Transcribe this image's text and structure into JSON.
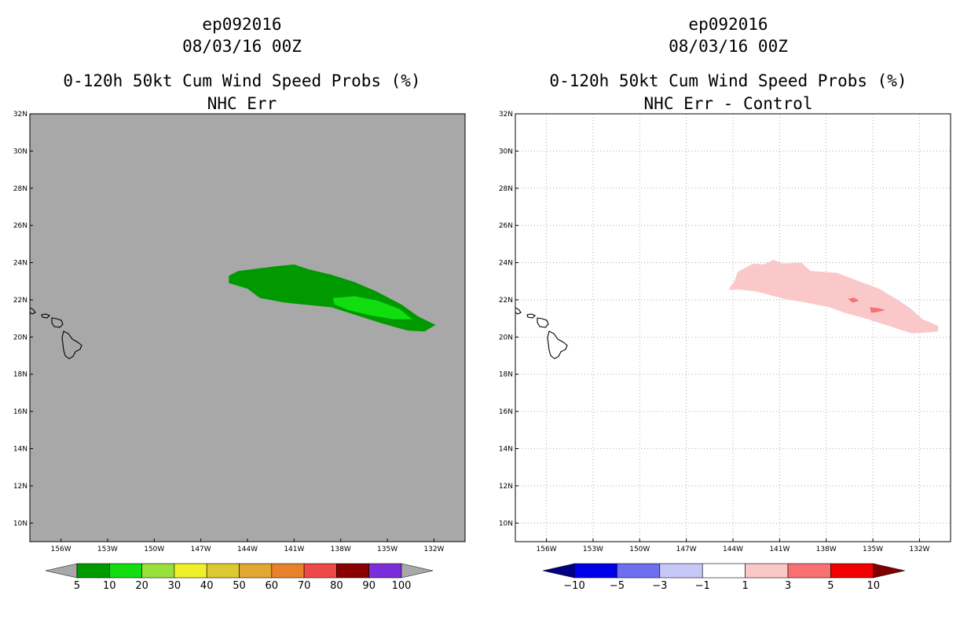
{
  "chart_data": [
    {
      "type": "heatmap",
      "storm": "ep092016",
      "date": "08/03/16 00Z",
      "title": "0-120h 50kt Cum Wind Speed Probs (%)",
      "subtitle": "NHC Err",
      "background_color": "#a8a8a8",
      "xaxis": {
        "range_lon": [
          -158,
          -130
        ],
        "tick_labels": [
          "156W",
          "153W",
          "150W",
          "147W",
          "144W",
          "141W",
          "138W",
          "135W",
          "132W"
        ],
        "tick_values": [
          -156,
          -153,
          -150,
          -147,
          -144,
          -141,
          -138,
          -135,
          -132
        ]
      },
      "yaxis": {
        "range_lat": [
          9,
          32
        ],
        "tick_labels": [
          "10N",
          "12N",
          "14N",
          "16N",
          "18N",
          "20N",
          "22N",
          "24N",
          "26N",
          "28N",
          "30N",
          "32N"
        ],
        "tick_values": [
          10,
          12,
          14,
          16,
          18,
          20,
          22,
          24,
          26,
          28,
          30,
          32
        ]
      },
      "grid": false,
      "colorbar": {
        "labels": [
          "5",
          "10",
          "20",
          "30",
          "40",
          "50",
          "60",
          "70",
          "80",
          "90",
          "100"
        ],
        "colors": [
          "#009900",
          "#11dd11",
          "#99e03c",
          "#f0f02a",
          "#dcc832",
          "#e0a732",
          "#e8822a",
          "#ee4848",
          "#8a0000",
          "#7a2ed8"
        ],
        "under_color": "#a8a8a8",
        "over_color": "#a8a8a8"
      },
      "contours": [
        {
          "level": 5,
          "color": "#009900",
          "lonlat": [
            [
              -145.2,
              23.3
            ],
            [
              -144.6,
              23.55
            ],
            [
              -142.2,
              23.8
            ],
            [
              -141.0,
              23.9
            ],
            [
              -140.1,
              23.65
            ],
            [
              -138.6,
              23.35
            ],
            [
              -137.1,
              22.95
            ],
            [
              -135.7,
              22.45
            ],
            [
              -134.1,
              21.75
            ],
            [
              -133.0,
              21.1
            ],
            [
              -131.9,
              20.65
            ],
            [
              -132.6,
              20.3
            ],
            [
              -133.7,
              20.35
            ],
            [
              -135.4,
              20.75
            ],
            [
              -137.1,
              21.2
            ],
            [
              -138.6,
              21.6
            ],
            [
              -140.4,
              21.75
            ],
            [
              -141.6,
              21.85
            ],
            [
              -143.2,
              22.1
            ],
            [
              -144.0,
              22.6
            ],
            [
              -145.2,
              22.9
            ]
          ]
        },
        {
          "level": 10,
          "color": "#11dd11",
          "lonlat": [
            [
              -138.5,
              22.1
            ],
            [
              -137.1,
              22.2
            ],
            [
              -135.6,
              21.95
            ],
            [
              -134.2,
              21.5
            ],
            [
              -133.4,
              20.95
            ],
            [
              -134.6,
              20.95
            ],
            [
              -136.0,
              21.15
            ],
            [
              -137.5,
              21.45
            ],
            [
              -138.4,
              21.75
            ]
          ]
        }
      ]
    },
    {
      "type": "heatmap",
      "storm": "ep092016",
      "date": "08/03/16 00Z",
      "title": "0-120h 50kt Cum Wind Speed Probs (%)",
      "subtitle": "NHC Err - Control",
      "background_color": "#ffffff",
      "xaxis": {
        "range_lon": [
          -158,
          -130
        ],
        "tick_labels": [
          "156W",
          "153W",
          "150W",
          "147W",
          "144W",
          "141W",
          "138W",
          "135W",
          "132W"
        ],
        "tick_values": [
          -156,
          -153,
          -150,
          -147,
          -144,
          -141,
          -138,
          -135,
          -132
        ]
      },
      "yaxis": {
        "range_lat": [
          9,
          32
        ],
        "tick_labels": [
          "10N",
          "12N",
          "14N",
          "16N",
          "18N",
          "20N",
          "22N",
          "24N",
          "26N",
          "28N",
          "30N",
          "32N"
        ],
        "tick_values": [
          10,
          12,
          14,
          16,
          18,
          20,
          22,
          24,
          26,
          28,
          30,
          32
        ]
      },
      "grid": true,
      "colorbar": {
        "labels": [
          "-10",
          "-5",
          "-3",
          "-1",
          "1",
          "3",
          "5",
          "10"
        ],
        "colors": [
          "#0000e6",
          "#6e6ef0",
          "#c8c8f8",
          "#ffffff",
          "#fac8c8",
          "#f87070",
          "#f00000"
        ],
        "under_color": "#000080",
        "over_color": "#800000"
      },
      "contours": [
        {
          "level": 1,
          "color": "#fac8c8",
          "lonlat": [
            [
              -143.7,
              23.5
            ],
            [
              -142.7,
              23.95
            ],
            [
              -142.0,
              23.9
            ],
            [
              -141.4,
              24.15
            ],
            [
              -140.8,
              23.95
            ],
            [
              -139.6,
              24.0
            ],
            [
              -139.0,
              23.55
            ],
            [
              -137.3,
              23.45
            ],
            [
              -135.9,
              23.0
            ],
            [
              -134.6,
              22.6
            ],
            [
              -133.4,
              22.0
            ],
            [
              -132.6,
              21.55
            ],
            [
              -131.8,
              20.95
            ],
            [
              -130.8,
              20.6
            ],
            [
              -130.8,
              20.3
            ],
            [
              -131.4,
              20.25
            ],
            [
              -132.5,
              20.2
            ],
            [
              -133.8,
              20.55
            ],
            [
              -135.3,
              20.95
            ],
            [
              -136.8,
              21.3
            ],
            [
              -137.8,
              21.6
            ],
            [
              -139.3,
              21.85
            ],
            [
              -140.7,
              22.05
            ],
            [
              -142.5,
              22.45
            ],
            [
              -143.7,
              22.55
            ],
            [
              -144.3,
              22.55
            ],
            [
              -143.9,
              23.0
            ]
          ]
        },
        {
          "level": 3,
          "color": "#f87070",
          "lonlat": [
            [
              -136.6,
              22.05
            ],
            [
              -136.2,
              22.12
            ],
            [
              -135.9,
              21.95
            ],
            [
              -136.3,
              21.85
            ]
          ]
        },
        {
          "level": 3,
          "color": "#f87070",
          "lonlat": [
            [
              -135.2,
              21.6
            ],
            [
              -134.6,
              21.55
            ],
            [
              -134.2,
              21.45
            ],
            [
              -134.7,
              21.35
            ],
            [
              -135.1,
              21.3
            ]
          ]
        }
      ]
    }
  ]
}
